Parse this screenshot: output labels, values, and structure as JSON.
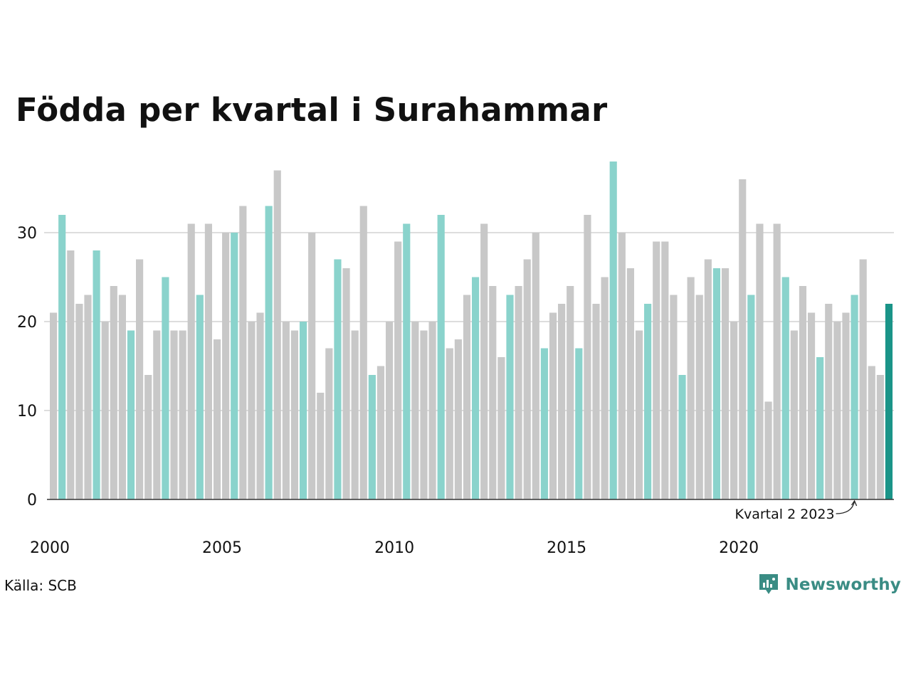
{
  "title": "Födda per kvartal i Surahammar",
  "source": "Källa: SCB",
  "brand": {
    "name": "Newsworthy",
    "icon": "newsworthy-logo-icon"
  },
  "colors": {
    "normal": "#c8c8c8",
    "highlight": "#8ad3cc",
    "latest": "#1a9488",
    "gridline": "#dddddd",
    "axis": "#333333"
  },
  "chart_data": {
    "type": "bar",
    "start_year": 2000,
    "periods_per_year": 4,
    "highlight_quarter": 2,
    "values": [
      21,
      32,
      28,
      22,
      23,
      28,
      20,
      24,
      23,
      19,
      27,
      14,
      19,
      25,
      19,
      19,
      31,
      23,
      31,
      18,
      30,
      30,
      33,
      20,
      21,
      33,
      37,
      20,
      19,
      20,
      30,
      12,
      17,
      27,
      26,
      19,
      33,
      14,
      15,
      20,
      29,
      31,
      20,
      19,
      20,
      32,
      17,
      18,
      23,
      25,
      31,
      24,
      16,
      23,
      24,
      27,
      30,
      17,
      21,
      22,
      24,
      17,
      32,
      22,
      25,
      38,
      30,
      26,
      19,
      22,
      29,
      29,
      23,
      14,
      25,
      23,
      27,
      26,
      26,
      20,
      36,
      23,
      31,
      11,
      31,
      25,
      19,
      24,
      21,
      16,
      22,
      20,
      21,
      23,
      27,
      15,
      14,
      22
    ],
    "ylim": [
      0,
      38
    ],
    "yticks": [
      0,
      10,
      20,
      30
    ],
    "xticks": [
      {
        "label": "2000",
        "year": 2000
      },
      {
        "label": "2005",
        "year": 2005
      },
      {
        "label": "2010",
        "year": 2010
      },
      {
        "label": "2015",
        "year": 2015
      },
      {
        "label": "2020",
        "year": 2020
      }
    ],
    "annotation": {
      "text": "Kvartal 2 2023",
      "year": 2023,
      "quarter": 2
    },
    "grid": true
  }
}
